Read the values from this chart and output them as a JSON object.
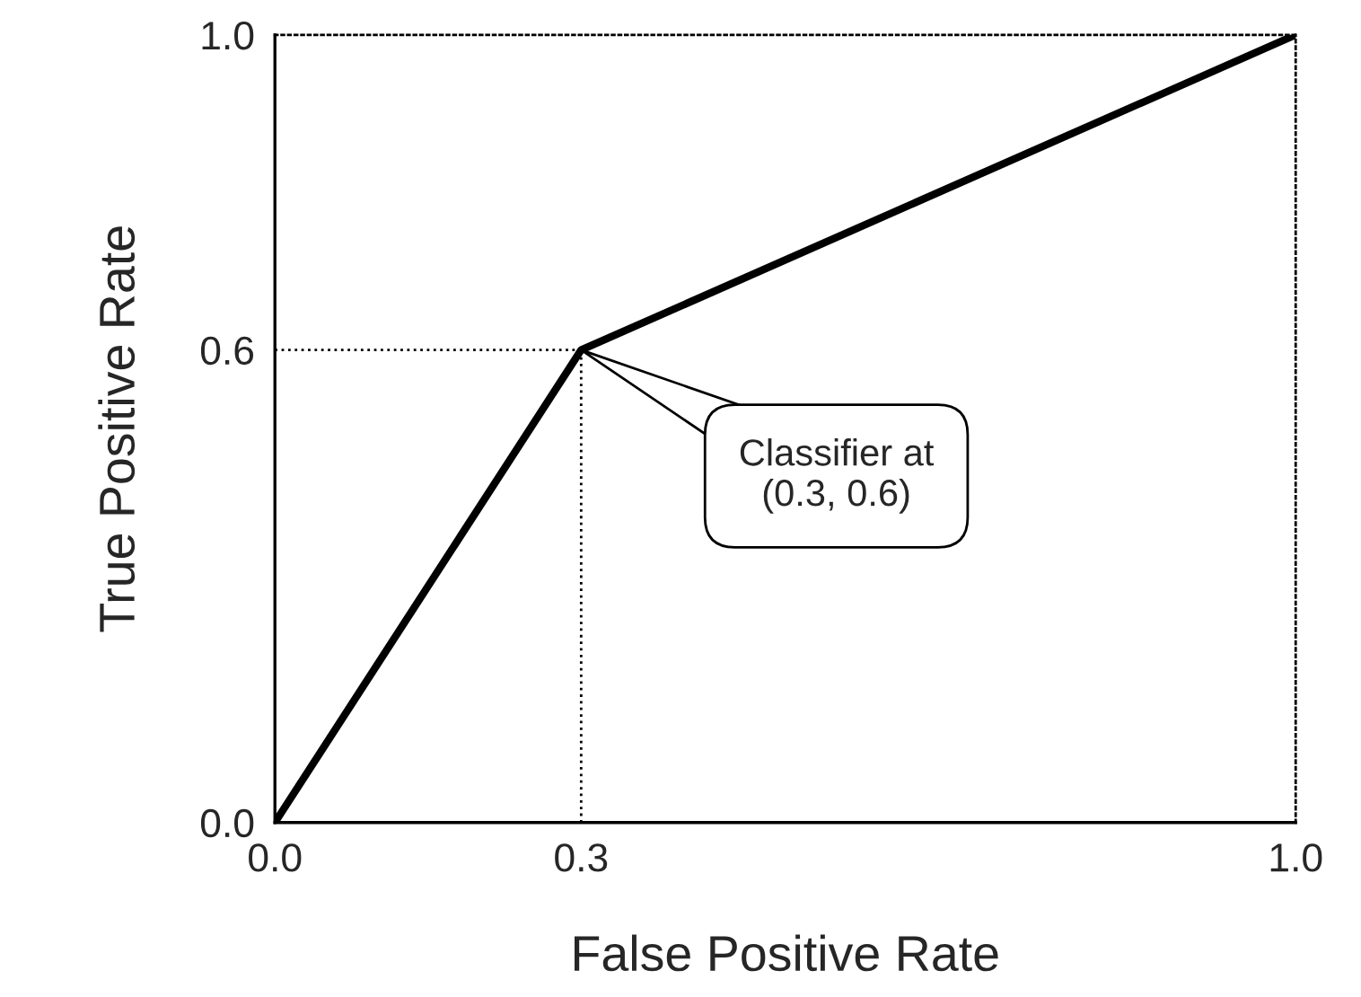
{
  "chart_data": {
    "type": "line",
    "xlabel": "False Positive Rate",
    "ylabel": "True Positive Rate",
    "x": [
      0.0,
      0.3,
      1.0
    ],
    "series": [
      {
        "color": "#000000",
        "values": [
          0.0,
          0.6,
          1.0
        ]
      }
    ],
    "xlim": [
      0,
      1
    ],
    "ylim": [
      0,
      1
    ],
    "xticks": [
      {
        "value": 0,
        "label": "0.0"
      },
      {
        "value": 0.3,
        "label": "0.3"
      },
      {
        "value": 1,
        "label": "1.0"
      }
    ],
    "yticks": [
      {
        "value": 0,
        "label": "0.0"
      },
      {
        "value": 0.6,
        "label": "0.6"
      },
      {
        "value": 1,
        "label": "1.0"
      }
    ],
    "ref_lines": [
      {
        "axis": "x",
        "value": 0.3,
        "line_style": "dotted",
        "color": "#000000"
      },
      {
        "axis": "y",
        "value": 0.6,
        "line_style": "dotted",
        "color": "#000000"
      }
    ],
    "annotations": [
      "Classifier at\n(0.3, 0.6)"
    ],
    "grid": false,
    "marker": "none",
    "line_style": "solid"
  }
}
